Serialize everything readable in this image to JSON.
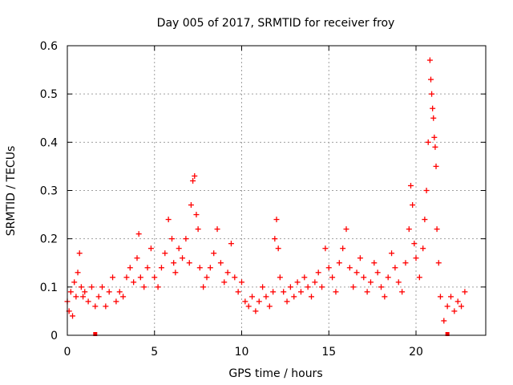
{
  "chart_data": {
    "type": "scatter",
    "title": "Day 005 of 2017, SRMTID for receiver froy",
    "xlabel": "GPS time / hours",
    "ylabel": "SRMTID / TECUs",
    "xlim": [
      0,
      24
    ],
    "ylim": [
      0,
      0.6
    ],
    "xticks": [
      0,
      5,
      10,
      15,
      20
    ],
    "yticks": [
      0,
      0.1,
      0.2,
      0.3,
      0.4,
      0.5,
      0.6
    ],
    "xtick_labels": [
      "0",
      "5",
      "10",
      "15",
      "20"
    ],
    "ytick_labels": [
      "0",
      "0.1",
      "0.2",
      "0.3",
      "0.4",
      "0.5",
      "0.6"
    ],
    "grid": true,
    "marker": "+",
    "color": "#ff0000",
    "series": [
      {
        "name": "SRMTID",
        "points": [
          [
            0.0,
            0.07
          ],
          [
            0.1,
            0.05
          ],
          [
            0.2,
            0.09
          ],
          [
            0.3,
            0.04
          ],
          [
            0.4,
            0.11
          ],
          [
            0.5,
            0.08
          ],
          [
            0.6,
            0.13
          ],
          [
            0.7,
            0.17
          ],
          [
            0.8,
            0.1
          ],
          [
            0.9,
            0.08
          ],
          [
            1.0,
            0.09
          ],
          [
            1.2,
            0.07
          ],
          [
            1.4,
            0.1
          ],
          [
            1.6,
            0.06
          ],
          [
            1.8,
            0.08
          ],
          [
            2.0,
            0.1
          ],
          [
            2.2,
            0.06
          ],
          [
            2.4,
            0.09
          ],
          [
            2.6,
            0.12
          ],
          [
            2.8,
            0.07
          ],
          [
            3.0,
            0.09
          ],
          [
            3.2,
            0.08
          ],
          [
            3.4,
            0.12
          ],
          [
            3.6,
            0.14
          ],
          [
            3.8,
            0.11
          ],
          [
            4.0,
            0.16
          ],
          [
            4.1,
            0.21
          ],
          [
            4.2,
            0.12
          ],
          [
            4.4,
            0.1
          ],
          [
            4.6,
            0.14
          ],
          [
            4.8,
            0.18
          ],
          [
            5.0,
            0.12
          ],
          [
            5.2,
            0.1
          ],
          [
            5.4,
            0.14
          ],
          [
            5.6,
            0.17
          ],
          [
            5.8,
            0.24
          ],
          [
            6.0,
            0.2
          ],
          [
            6.1,
            0.15
          ],
          [
            6.2,
            0.13
          ],
          [
            6.4,
            0.18
          ],
          [
            6.6,
            0.16
          ],
          [
            6.8,
            0.2
          ],
          [
            7.0,
            0.15
          ],
          [
            7.1,
            0.27
          ],
          [
            7.2,
            0.32
          ],
          [
            7.3,
            0.33
          ],
          [
            7.4,
            0.25
          ],
          [
            7.5,
            0.22
          ],
          [
            7.6,
            0.14
          ],
          [
            7.8,
            0.1
          ],
          [
            8.0,
            0.12
          ],
          [
            8.2,
            0.14
          ],
          [
            8.4,
            0.17
          ],
          [
            8.6,
            0.22
          ],
          [
            8.8,
            0.15
          ],
          [
            9.0,
            0.11
          ],
          [
            9.2,
            0.13
          ],
          [
            9.4,
            0.19
          ],
          [
            9.6,
            0.12
          ],
          [
            9.8,
            0.09
          ],
          [
            10.0,
            0.11
          ],
          [
            10.2,
            0.07
          ],
          [
            10.4,
            0.06
          ],
          [
            10.6,
            0.08
          ],
          [
            10.8,
            0.05
          ],
          [
            11.0,
            0.07
          ],
          [
            11.2,
            0.1
          ],
          [
            11.4,
            0.08
          ],
          [
            11.6,
            0.06
          ],
          [
            11.8,
            0.09
          ],
          [
            11.9,
            0.2
          ],
          [
            12.0,
            0.24
          ],
          [
            12.1,
            0.18
          ],
          [
            12.2,
            0.12
          ],
          [
            12.4,
            0.09
          ],
          [
            12.6,
            0.07
          ],
          [
            12.8,
            0.1
          ],
          [
            13.0,
            0.08
          ],
          [
            13.2,
            0.11
          ],
          [
            13.4,
            0.09
          ],
          [
            13.6,
            0.12
          ],
          [
            13.8,
            0.1
          ],
          [
            14.0,
            0.08
          ],
          [
            14.2,
            0.11
          ],
          [
            14.4,
            0.13
          ],
          [
            14.6,
            0.1
          ],
          [
            14.8,
            0.18
          ],
          [
            15.0,
            0.14
          ],
          [
            15.2,
            0.12
          ],
          [
            15.4,
            0.09
          ],
          [
            15.6,
            0.15
          ],
          [
            15.8,
            0.18
          ],
          [
            16.0,
            0.22
          ],
          [
            16.2,
            0.14
          ],
          [
            16.4,
            0.1
          ],
          [
            16.6,
            0.13
          ],
          [
            16.8,
            0.16
          ],
          [
            17.0,
            0.12
          ],
          [
            17.2,
            0.09
          ],
          [
            17.4,
            0.11
          ],
          [
            17.6,
            0.15
          ],
          [
            17.8,
            0.13
          ],
          [
            18.0,
            0.1
          ],
          [
            18.2,
            0.08
          ],
          [
            18.4,
            0.12
          ],
          [
            18.6,
            0.17
          ],
          [
            18.8,
            0.14
          ],
          [
            19.0,
            0.11
          ],
          [
            19.2,
            0.09
          ],
          [
            19.4,
            0.15
          ],
          [
            19.6,
            0.22
          ],
          [
            19.7,
            0.31
          ],
          [
            19.8,
            0.27
          ],
          [
            19.9,
            0.19
          ],
          [
            20.0,
            0.16
          ],
          [
            20.2,
            0.12
          ],
          [
            20.4,
            0.18
          ],
          [
            20.5,
            0.24
          ],
          [
            20.6,
            0.3
          ],
          [
            20.7,
            0.4
          ],
          [
            20.8,
            0.57
          ],
          [
            20.85,
            0.53
          ],
          [
            20.9,
            0.5
          ],
          [
            20.95,
            0.47
          ],
          [
            21.0,
            0.45
          ],
          [
            21.05,
            0.41
          ],
          [
            21.1,
            0.39
          ],
          [
            21.15,
            0.35
          ],
          [
            21.2,
            0.22
          ],
          [
            21.3,
            0.15
          ],
          [
            21.4,
            0.08
          ],
          [
            21.6,
            0.03
          ],
          [
            21.8,
            0.06
          ],
          [
            22.0,
            0.08
          ],
          [
            22.2,
            0.05
          ],
          [
            22.4,
            0.07
          ],
          [
            22.6,
            0.06
          ],
          [
            22.8,
            0.09
          ]
        ]
      }
    ],
    "baseline_markers": [
      1.6,
      21.8
    ]
  }
}
